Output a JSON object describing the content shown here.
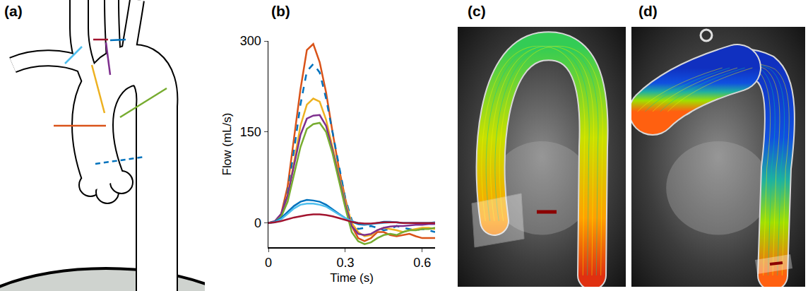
{
  "panel_labels": [
    "(a)",
    "(b)",
    "(c)",
    "(d)"
  ],
  "chart_data": {
    "type": "line",
    "x_label": "Time (s)",
    "y_label": "Flow (mL/s)",
    "x": [
      0,
      0.025,
      0.05,
      0.075,
      0.1,
      0.125,
      0.15,
      0.175,
      0.2,
      0.225,
      0.25,
      0.275,
      0.3,
      0.325,
      0.35,
      0.375,
      0.4,
      0.425,
      0.45,
      0.475,
      0.5,
      0.525,
      0.55,
      0.575,
      0.6,
      0.625,
      0.65
    ],
    "xlim": [
      0,
      0.65
    ],
    "xticks": [
      0,
      0.3,
      0.6
    ],
    "ylim": [
      -40,
      300
    ],
    "yticks": [
      0,
      150,
      300
    ],
    "grid": false,
    "series": [
      {
        "color": "#d95319",
        "line_style": "solid",
        "values": [
          0,
          2,
          15,
          60,
          140,
          220,
          285,
          295,
          265,
          215,
          150,
          90,
          40,
          -5,
          -25,
          -30,
          -25,
          -15,
          -15,
          -20,
          -22,
          -20,
          -18,
          -22,
          -25,
          -25,
          -25
        ]
      },
      {
        "color": "#0072bd",
        "line_style": "dashed",
        "values": [
          0,
          2,
          12,
          50,
          120,
          195,
          250,
          262,
          248,
          205,
          150,
          95,
          40,
          5,
          -10,
          -8,
          -5,
          -8,
          -12,
          -10,
          -5,
          -8,
          -10,
          -12,
          -10,
          -12,
          -15
        ]
      },
      {
        "color": "#edb120",
        "line_style": "solid",
        "values": [
          0,
          2,
          12,
          45,
          100,
          160,
          195,
          205,
          200,
          170,
          125,
          80,
          35,
          0,
          -15,
          -22,
          -20,
          -12,
          -8,
          -10,
          -12,
          -15,
          -12,
          -10,
          -8,
          -8,
          -10
        ]
      },
      {
        "color": "#7e2f8e",
        "line_style": "solid",
        "values": [
          0,
          3,
          15,
          45,
          95,
          145,
          172,
          177,
          178,
          160,
          120,
          75,
          30,
          -5,
          -18,
          -20,
          -18,
          -12,
          -8,
          -6,
          -5,
          -5,
          -4,
          -3,
          -3,
          -2,
          -2
        ]
      },
      {
        "color": "#77ac30",
        "line_style": "solid",
        "values": [
          0,
          2,
          10,
          35,
          80,
          125,
          155,
          163,
          165,
          150,
          115,
          70,
          25,
          -15,
          -30,
          -35,
          -32,
          -25,
          -20,
          -18,
          -20,
          -15,
          -12,
          -12,
          -10,
          -10,
          -8
        ]
      },
      {
        "color": "#0072bd",
        "line_style": "solid",
        "values": [
          0,
          2,
          8,
          18,
          28,
          35,
          38,
          37,
          35,
          30,
          22,
          15,
          8,
          2,
          -2,
          -3,
          -2,
          0,
          2,
          2,
          1,
          0,
          0,
          0,
          0,
          0,
          1
        ]
      },
      {
        "color": "#4dbeee",
        "line_style": "solid",
        "values": [
          0,
          1,
          6,
          15,
          24,
          30,
          32,
          32,
          30,
          27,
          20,
          14,
          8,
          3,
          0,
          -2,
          -2,
          -1,
          0,
          1,
          1,
          0,
          0,
          0,
          0,
          0,
          0
        ]
      },
      {
        "color": "#a2142f",
        "line_style": "solid",
        "values": [
          0,
          1,
          3,
          6,
          9,
          11,
          13,
          14,
          14,
          13,
          11,
          8,
          5,
          2,
          0,
          -1,
          -1,
          0,
          1,
          1,
          1,
          0,
          0,
          0,
          0,
          0,
          0
        ]
      }
    ]
  }
}
